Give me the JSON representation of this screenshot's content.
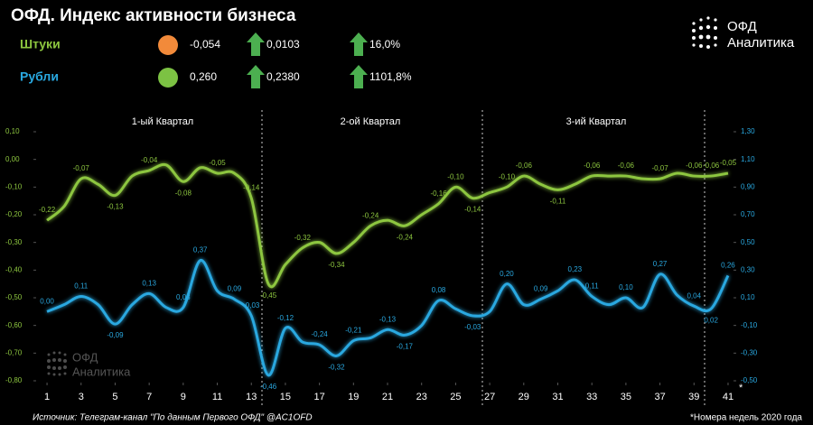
{
  "chart_data": {
    "type": "line",
    "title": "ОФД. Индекс активности бизнеса",
    "quarters": [
      "1-ый Квартал",
      "2-ой Квартал",
      "3-ий Квартал"
    ],
    "x": [
      1,
      2,
      3,
      4,
      5,
      6,
      7,
      8,
      9,
      10,
      11,
      12,
      13,
      14,
      15,
      16,
      17,
      18,
      19,
      20,
      21,
      22,
      23,
      24,
      25,
      26,
      27,
      28,
      29,
      30,
      31,
      32,
      33,
      34,
      35,
      36,
      37,
      38,
      39,
      40,
      41
    ],
    "xlim": [
      0.36,
      41.32
    ],
    "xticks": [
      1,
      3,
      5,
      7,
      9,
      11,
      13,
      15,
      17,
      19,
      21,
      23,
      25,
      27,
      29,
      31,
      33,
      35,
      37,
      39,
      41
    ],
    "ylim": [
      -0.8,
      0.1
    ],
    "yticks": [
      {
        "value": 0.1,
        "label": "0,10"
      },
      {
        "value": 0,
        "label": "0,00"
      },
      {
        "value": -0.1,
        "label": "-0,10"
      },
      {
        "value": -0.2,
        "label": "-0,20"
      },
      {
        "value": -0.3,
        "label": "-0,30"
      },
      {
        "value": -0.4,
        "label": "-0,40"
      },
      {
        "value": -0.5,
        "label": "-0,50"
      },
      {
        "value": -0.6,
        "label": "-0,60"
      },
      {
        "value": -0.7,
        "label": "-0,70"
      },
      {
        "value": -0.8,
        "label": "-0,80"
      }
    ],
    "y2lim": [
      -0.5,
      1.3
    ],
    "y2ticks": [
      {
        "value": 1.3,
        "label": "1,30"
      },
      {
        "value": 1.1,
        "label": "1,10"
      },
      {
        "value": 0.9,
        "label": "0,90"
      },
      {
        "value": 0.7,
        "label": "0,70"
      },
      {
        "value": 0.5,
        "label": "0,50"
      },
      {
        "value": 0.3,
        "label": "0,30"
      },
      {
        "value": 0.1,
        "label": "0,10"
      },
      {
        "value": -0.1,
        "label": "-0,10"
      },
      {
        "value": -0.3,
        "label": "-0,30"
      },
      {
        "value": -0.5,
        "label": "-0,50"
      }
    ],
    "grid": false,
    "series": [
      {
        "name": "Штуки",
        "color": "#8dc63f",
        "axis": "y",
        "values": [
          -0.22,
          -0.17,
          -0.07,
          -0.09,
          -0.13,
          -0.06,
          -0.04,
          -0.02,
          -0.08,
          -0.03,
          -0.05,
          -0.05,
          -0.14,
          -0.45,
          -0.38,
          -0.32,
          -0.3,
          -0.34,
          -0.3,
          -0.24,
          -0.22,
          -0.24,
          -0.2,
          -0.16,
          -0.1,
          -0.14,
          -0.12,
          -0.1,
          -0.06,
          -0.09,
          -0.11,
          -0.09,
          -0.06,
          -0.06,
          -0.06,
          -0.07,
          -0.07,
          -0.05,
          -0.06,
          -0.06,
          -0.05
        ],
        "value_labels": [
          "-0,22",
          null,
          "-0,07",
          null,
          "-0,13",
          null,
          "-0,04",
          null,
          "-0,08",
          null,
          "-0,05",
          null,
          "-0,14",
          "-0,45",
          null,
          "-0,32",
          null,
          "-0,34",
          null,
          "-0,24",
          null,
          "-0,24",
          null,
          "-0,16",
          "-0,10",
          "-0,14",
          null,
          "-0,10",
          "-0,06",
          null,
          "-0,11",
          null,
          "-0,06",
          null,
          "-0,06",
          null,
          "-0,07",
          null,
          "-0,06",
          "-0,06",
          "-0,05"
        ]
      },
      {
        "name": "Рубли",
        "color": "#29a8e0",
        "axis": "y2",
        "values": [
          0.0,
          0.05,
          0.11,
          0.05,
          -0.09,
          0.05,
          0.13,
          0.03,
          0.03,
          0.37,
          0.15,
          0.09,
          -0.03,
          -0.46,
          -0.12,
          -0.22,
          -0.24,
          -0.32,
          -0.21,
          -0.19,
          -0.13,
          -0.17,
          -0.1,
          0.08,
          0.02,
          -0.03,
          0.0,
          0.2,
          0.05,
          0.09,
          0.15,
          0.23,
          0.11,
          0.05,
          0.1,
          0.03,
          0.27,
          0.12,
          0.04,
          0.02,
          0.26
        ],
        "value_labels": [
          "0,00",
          null,
          "0,11",
          null,
          "-0,09",
          null,
          "0,13",
          null,
          "0,03",
          "0,37",
          null,
          "0,09",
          "-0,03",
          "-0,46",
          "-0,12",
          null,
          "-0,24",
          "-0,32",
          "-0,21",
          null,
          "-0,13",
          "-0,17",
          null,
          "0,08",
          null,
          "-0,03",
          null,
          "0,20",
          null,
          "0,09",
          null,
          "0,23",
          "0,11",
          null,
          "0,10",
          null,
          "0,27",
          null,
          "0,04",
          "0,02",
          "0,26"
        ]
      }
    ]
  },
  "summary": [
    {
      "name": "Штуки",
      "circle_color": "#f28a3a",
      "value": "-0,054",
      "change": "0,0103",
      "percent": "16,0%"
    },
    {
      "name": "Рубли",
      "circle_color": "#7cc243",
      "value": "0,260",
      "change": "0,2380",
      "percent": "1101,8%"
    }
  ],
  "logo": {
    "line1": "ОФД",
    "line2": "Аналитика"
  },
  "footnote_mark": "*",
  "source": "Источник: Телеграм-канал \"По данным Первого ОФД\" @AC1OFD",
  "note": "*Номера недель 2020 года"
}
